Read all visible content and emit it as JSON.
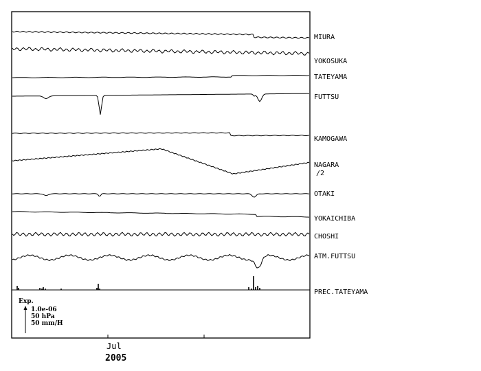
{
  "chart_data": {
    "type": "line",
    "title": "",
    "stations": [
      {
        "name": "MIURA",
        "note": ""
      },
      {
        "name": "YOKOSUKA",
        "note": ""
      },
      {
        "name": "TATEYAMA",
        "note": ""
      },
      {
        "name": "FUTTSU",
        "note": ""
      },
      {
        "name": "KAMOGAWA",
        "note": ""
      },
      {
        "name": "NAGARA",
        "note": "/2"
      },
      {
        "name": "OTAKI",
        "note": ""
      },
      {
        "name": "YOKAICHIBA",
        "note": ""
      },
      {
        "name": "CHOSHI",
        "note": ""
      },
      {
        "name": "ATM.FUTTSU",
        "note": ""
      },
      {
        "name": "PREC.TATEYAMA",
        "note": ""
      }
    ],
    "scale_legend": {
      "title": "Exp.",
      "lines": [
        "1.0e-06",
        "50 hPa",
        "50 mm/H"
      ]
    },
    "x_axis": {
      "tick_labels": [
        "Jul"
      ],
      "year_label": "2005"
    },
    "grid": false,
    "legend": "none"
  }
}
